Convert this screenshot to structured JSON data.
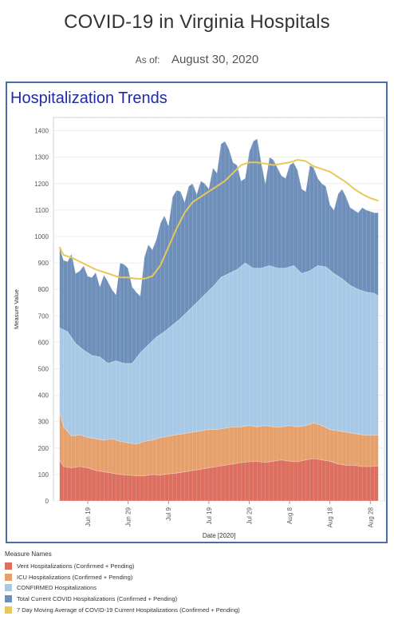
{
  "header": {
    "title": "COVID-19 in Virginia Hospitals",
    "as_of_label": "As of:",
    "as_of_value": "August 30, 2020"
  },
  "panel": {
    "title": "Hospitalization Trends"
  },
  "legend": {
    "title": "Measure Names",
    "items": [
      {
        "label": "Vent Hospitalizations (Confirmed + Pending)",
        "color": "#dc6f5f"
      },
      {
        "label": "ICU Hospitalizations (Confirmed + Pending)",
        "color": "#e6a06b"
      },
      {
        "label": "CONFIRMED Hospitalizations",
        "color": "#a7c9e6"
      },
      {
        "label": "Total Current COVID Hospitalizations (Confirmed + Pending)",
        "color": "#6e8fba"
      },
      {
        "label": "7 Day Moving Average of COVID-19 Current Hospitalizations (Confirmed + Pending)",
        "color": "#e8c85a"
      }
    ]
  },
  "chart_data": {
    "type": "area",
    "xlabel": "Date [2020]",
    "ylabel": "Measure Value",
    "ylim": [
      0,
      1450
    ],
    "yticks": [
      0,
      100,
      200,
      300,
      400,
      500,
      600,
      700,
      800,
      900,
      1000,
      1100,
      1200,
      1300,
      1400
    ],
    "x_start": "2020-06-12",
    "x_end": "2020-08-30",
    "xticks": [
      {
        "date": "2020-06-19",
        "label": "Jun 19"
      },
      {
        "date": "2020-06-29",
        "label": "Jun 29"
      },
      {
        "date": "2020-07-09",
        "label": "Jul 9"
      },
      {
        "date": "2020-07-19",
        "label": "Jul 19"
      },
      {
        "date": "2020-07-29",
        "label": "Jul 29"
      },
      {
        "date": "2020-08-08",
        "label": "Aug 8"
      },
      {
        "date": "2020-08-18",
        "label": "Aug 18"
      },
      {
        "date": "2020-08-28",
        "label": "Aug 28"
      }
    ],
    "grid": true,
    "series": [
      {
        "name": "Total Current COVID Hospitalizations (Confirmed + Pending)",
        "kind": "area",
        "color": "#6e8fba",
        "points": [
          [
            "2020-06-12",
            960
          ],
          [
            "2020-06-13",
            910
          ],
          [
            "2020-06-14",
            905
          ],
          [
            "2020-06-15",
            935
          ],
          [
            "2020-06-16",
            860
          ],
          [
            "2020-06-17",
            870
          ],
          [
            "2020-06-18",
            890
          ],
          [
            "2020-06-19",
            850
          ],
          [
            "2020-06-20",
            845
          ],
          [
            "2020-06-21",
            865
          ],
          [
            "2020-06-22",
            810
          ],
          [
            "2020-06-23",
            855
          ],
          [
            "2020-06-24",
            830
          ],
          [
            "2020-06-25",
            800
          ],
          [
            "2020-06-26",
            780
          ],
          [
            "2020-06-27",
            900
          ],
          [
            "2020-06-28",
            895
          ],
          [
            "2020-06-29",
            880
          ],
          [
            "2020-06-30",
            810
          ],
          [
            "2020-07-01",
            790
          ],
          [
            "2020-07-02",
            775
          ],
          [
            "2020-07-03",
            920
          ],
          [
            "2020-07-04",
            970
          ],
          [
            "2020-07-05",
            950
          ],
          [
            "2020-07-06",
            990
          ],
          [
            "2020-07-07",
            1050
          ],
          [
            "2020-07-08",
            1080
          ],
          [
            "2020-07-09",
            1040
          ],
          [
            "2020-07-10",
            1150
          ],
          [
            "2020-07-11",
            1175
          ],
          [
            "2020-07-12",
            1170
          ],
          [
            "2020-07-13",
            1130
          ],
          [
            "2020-07-14",
            1190
          ],
          [
            "2020-07-15",
            1200
          ],
          [
            "2020-07-16",
            1160
          ],
          [
            "2020-07-17",
            1210
          ],
          [
            "2020-07-18",
            1200
          ],
          [
            "2020-07-19",
            1180
          ],
          [
            "2020-07-20",
            1260
          ],
          [
            "2020-07-21",
            1240
          ],
          [
            "2020-07-22",
            1350
          ],
          [
            "2020-07-23",
            1360
          ],
          [
            "2020-07-24",
            1330
          ],
          [
            "2020-07-25",
            1280
          ],
          [
            "2020-07-26",
            1270
          ],
          [
            "2020-07-27",
            1210
          ],
          [
            "2020-07-28",
            1220
          ],
          [
            "2020-07-29",
            1320
          ],
          [
            "2020-07-30",
            1360
          ],
          [
            "2020-07-31",
            1370
          ],
          [
            "2020-08-01",
            1280
          ],
          [
            "2020-08-02",
            1200
          ],
          [
            "2020-08-03",
            1300
          ],
          [
            "2020-08-04",
            1290
          ],
          [
            "2020-08-05",
            1260
          ],
          [
            "2020-08-06",
            1230
          ],
          [
            "2020-08-07",
            1220
          ],
          [
            "2020-08-08",
            1270
          ],
          [
            "2020-08-09",
            1280
          ],
          [
            "2020-08-10",
            1250
          ],
          [
            "2020-08-11",
            1180
          ],
          [
            "2020-08-12",
            1170
          ],
          [
            "2020-08-13",
            1270
          ],
          [
            "2020-08-14",
            1260
          ],
          [
            "2020-08-15",
            1220
          ],
          [
            "2020-08-16",
            1200
          ],
          [
            "2020-08-17",
            1190
          ],
          [
            "2020-08-18",
            1120
          ],
          [
            "2020-08-19",
            1100
          ],
          [
            "2020-08-20",
            1160
          ],
          [
            "2020-08-21",
            1180
          ],
          [
            "2020-08-22",
            1150
          ],
          [
            "2020-08-23",
            1110
          ],
          [
            "2020-08-24",
            1100
          ],
          [
            "2020-08-25",
            1090
          ],
          [
            "2020-08-26",
            1110
          ],
          [
            "2020-08-27",
            1100
          ],
          [
            "2020-08-28",
            1095
          ],
          [
            "2020-08-29",
            1090
          ],
          [
            "2020-08-30",
            1090
          ]
        ]
      },
      {
        "name": "CONFIRMED Hospitalizations",
        "kind": "area",
        "color": "#a7c9e6",
        "points": [
          [
            "2020-06-12",
            655
          ],
          [
            "2020-06-14",
            640
          ],
          [
            "2020-06-16",
            595
          ],
          [
            "2020-06-18",
            570
          ],
          [
            "2020-06-20",
            550
          ],
          [
            "2020-06-22",
            545
          ],
          [
            "2020-06-24",
            520
          ],
          [
            "2020-06-26",
            530
          ],
          [
            "2020-06-28",
            520
          ],
          [
            "2020-06-30",
            520
          ],
          [
            "2020-07-02",
            560
          ],
          [
            "2020-07-04",
            590
          ],
          [
            "2020-07-06",
            620
          ],
          [
            "2020-07-08",
            640
          ],
          [
            "2020-07-10",
            665
          ],
          [
            "2020-07-12",
            690
          ],
          [
            "2020-07-14",
            720
          ],
          [
            "2020-07-16",
            750
          ],
          [
            "2020-07-18",
            780
          ],
          [
            "2020-07-20",
            810
          ],
          [
            "2020-07-22",
            845
          ],
          [
            "2020-07-24",
            860
          ],
          [
            "2020-07-26",
            875
          ],
          [
            "2020-07-28",
            900
          ],
          [
            "2020-07-30",
            880
          ],
          [
            "2020-08-01",
            880
          ],
          [
            "2020-08-03",
            890
          ],
          [
            "2020-08-05",
            880
          ],
          [
            "2020-08-07",
            880
          ],
          [
            "2020-08-09",
            890
          ],
          [
            "2020-08-11",
            860
          ],
          [
            "2020-08-13",
            870
          ],
          [
            "2020-08-15",
            890
          ],
          [
            "2020-08-17",
            885
          ],
          [
            "2020-08-19",
            860
          ],
          [
            "2020-08-21",
            840
          ],
          [
            "2020-08-23",
            815
          ],
          [
            "2020-08-25",
            800
          ],
          [
            "2020-08-27",
            790
          ],
          [
            "2020-08-29",
            785
          ],
          [
            "2020-08-30",
            775
          ]
        ]
      },
      {
        "name": "ICU Hospitalizations (Confirmed + Pending)",
        "kind": "area",
        "color": "#e6a06b",
        "points": [
          [
            "2020-06-12",
            340
          ],
          [
            "2020-06-13",
            280
          ],
          [
            "2020-06-15",
            245
          ],
          [
            "2020-06-17",
            250
          ],
          [
            "2020-06-19",
            240
          ],
          [
            "2020-06-21",
            235
          ],
          [
            "2020-06-23",
            230
          ],
          [
            "2020-06-25",
            235
          ],
          [
            "2020-06-27",
            225
          ],
          [
            "2020-06-29",
            220
          ],
          [
            "2020-07-01",
            215
          ],
          [
            "2020-07-03",
            225
          ],
          [
            "2020-07-05",
            230
          ],
          [
            "2020-07-07",
            240
          ],
          [
            "2020-07-09",
            245
          ],
          [
            "2020-07-11",
            250
          ],
          [
            "2020-07-13",
            255
          ],
          [
            "2020-07-15",
            260
          ],
          [
            "2020-07-17",
            265
          ],
          [
            "2020-07-19",
            270
          ],
          [
            "2020-07-21",
            270
          ],
          [
            "2020-07-23",
            275
          ],
          [
            "2020-07-25",
            280
          ],
          [
            "2020-07-27",
            280
          ],
          [
            "2020-07-29",
            285
          ],
          [
            "2020-07-31",
            280
          ],
          [
            "2020-08-02",
            285
          ],
          [
            "2020-08-04",
            280
          ],
          [
            "2020-08-06",
            280
          ],
          [
            "2020-08-08",
            285
          ],
          [
            "2020-08-10",
            280
          ],
          [
            "2020-08-12",
            285
          ],
          [
            "2020-08-14",
            295
          ],
          [
            "2020-08-16",
            285
          ],
          [
            "2020-08-18",
            270
          ],
          [
            "2020-08-20",
            265
          ],
          [
            "2020-08-22",
            260
          ],
          [
            "2020-08-24",
            255
          ],
          [
            "2020-08-26",
            250
          ],
          [
            "2020-08-28",
            248
          ],
          [
            "2020-08-30",
            250
          ]
        ]
      },
      {
        "name": "Vent Hospitalizations (Confirmed + Pending)",
        "kind": "area",
        "color": "#dc6f5f",
        "points": [
          [
            "2020-06-12",
            155
          ],
          [
            "2020-06-13",
            130
          ],
          [
            "2020-06-15",
            125
          ],
          [
            "2020-06-17",
            130
          ],
          [
            "2020-06-19",
            125
          ],
          [
            "2020-06-21",
            115
          ],
          [
            "2020-06-23",
            110
          ],
          [
            "2020-06-25",
            105
          ],
          [
            "2020-06-27",
            100
          ],
          [
            "2020-06-29",
            98
          ],
          [
            "2020-07-01",
            95
          ],
          [
            "2020-07-03",
            95
          ],
          [
            "2020-07-05",
            100
          ],
          [
            "2020-07-07",
            98
          ],
          [
            "2020-07-09",
            102
          ],
          [
            "2020-07-11",
            105
          ],
          [
            "2020-07-13",
            110
          ],
          [
            "2020-07-15",
            115
          ],
          [
            "2020-07-17",
            120
          ],
          [
            "2020-07-19",
            125
          ],
          [
            "2020-07-21",
            130
          ],
          [
            "2020-07-23",
            135
          ],
          [
            "2020-07-25",
            140
          ],
          [
            "2020-07-27",
            145
          ],
          [
            "2020-07-29",
            148
          ],
          [
            "2020-07-31",
            150
          ],
          [
            "2020-08-02",
            145
          ],
          [
            "2020-08-04",
            150
          ],
          [
            "2020-08-06",
            155
          ],
          [
            "2020-08-08",
            150
          ],
          [
            "2020-08-10",
            148
          ],
          [
            "2020-08-12",
            155
          ],
          [
            "2020-08-14",
            160
          ],
          [
            "2020-08-16",
            155
          ],
          [
            "2020-08-18",
            150
          ],
          [
            "2020-08-20",
            140
          ],
          [
            "2020-08-22",
            135
          ],
          [
            "2020-08-24",
            135
          ],
          [
            "2020-08-26",
            130
          ],
          [
            "2020-08-28",
            130
          ],
          [
            "2020-08-30",
            132
          ]
        ]
      },
      {
        "name": "7 Day Moving Average of COVID-19 Current Hospitalizations (Confirmed + Pending)",
        "kind": "line",
        "color": "#e8c85a",
        "points": [
          [
            "2020-06-12",
            960
          ],
          [
            "2020-06-13",
            930
          ],
          [
            "2020-06-15",
            920
          ],
          [
            "2020-06-17",
            905
          ],
          [
            "2020-06-19",
            890
          ],
          [
            "2020-06-21",
            875
          ],
          [
            "2020-06-23",
            865
          ],
          [
            "2020-06-25",
            855
          ],
          [
            "2020-06-27",
            845
          ],
          [
            "2020-06-29",
            845
          ],
          [
            "2020-07-01",
            840
          ],
          [
            "2020-07-03",
            840
          ],
          [
            "2020-07-05",
            850
          ],
          [
            "2020-07-07",
            890
          ],
          [
            "2020-07-09",
            960
          ],
          [
            "2020-07-11",
            1030
          ],
          [
            "2020-07-13",
            1090
          ],
          [
            "2020-07-15",
            1130
          ],
          [
            "2020-07-17",
            1150
          ],
          [
            "2020-07-19",
            1170
          ],
          [
            "2020-07-21",
            1190
          ],
          [
            "2020-07-23",
            1210
          ],
          [
            "2020-07-25",
            1240
          ],
          [
            "2020-07-27",
            1270
          ],
          [
            "2020-07-29",
            1280
          ],
          [
            "2020-07-31",
            1280
          ],
          [
            "2020-08-02",
            1275
          ],
          [
            "2020-08-04",
            1270
          ],
          [
            "2020-08-06",
            1275
          ],
          [
            "2020-08-08",
            1280
          ],
          [
            "2020-08-10",
            1290
          ],
          [
            "2020-08-12",
            1285
          ],
          [
            "2020-08-14",
            1265
          ],
          [
            "2020-08-16",
            1255
          ],
          [
            "2020-08-18",
            1245
          ],
          [
            "2020-08-20",
            1225
          ],
          [
            "2020-08-22",
            1205
          ],
          [
            "2020-08-24",
            1180
          ],
          [
            "2020-08-26",
            1160
          ],
          [
            "2020-08-28",
            1145
          ],
          [
            "2020-08-30",
            1135
          ]
        ]
      }
    ]
  }
}
